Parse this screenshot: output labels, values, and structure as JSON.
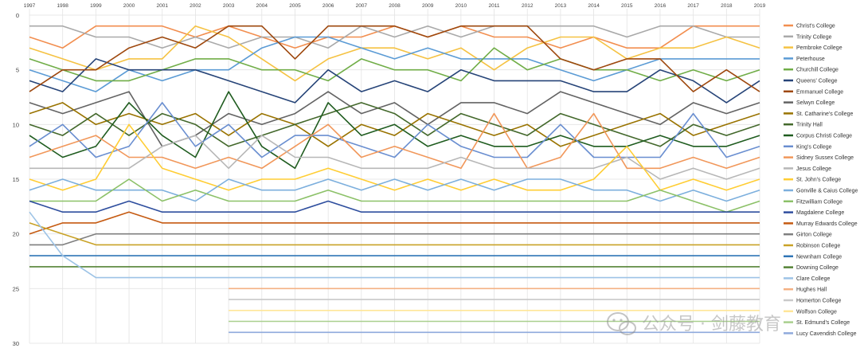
{
  "chart_data": {
    "type": "line",
    "title": "",
    "xlabel": "",
    "ylabel": "",
    "x": [
      "1997",
      "1998",
      "1999",
      "2000",
      "2001",
      "2002",
      "2003",
      "2004",
      "2005",
      "2006",
      "2007",
      "2008",
      "2009",
      "2010",
      "2011",
      "2012",
      "2013",
      "2014",
      "2015",
      "2016",
      "2017",
      "2018",
      "2019"
    ],
    "y_ticks": [
      "0",
      "5",
      "10",
      "15",
      "20",
      "25",
      "30"
    ],
    "ylim": [
      0,
      30
    ],
    "y_inverted": true,
    "x_axis_position": "top",
    "grid": {
      "horizontal": true,
      "vertical": true
    },
    "legend_position": "right",
    "series": [
      {
        "name": "Christ's College",
        "color": "#f28e4f",
        "values": [
          2,
          3,
          1,
          1,
          1,
          2,
          1,
          2,
          3,
          2,
          2,
          1,
          2,
          1,
          2,
          2,
          3,
          2,
          3,
          3,
          1,
          1,
          1
        ]
      },
      {
        "name": "Trinity College",
        "color": "#a9a9a9",
        "values": [
          1,
          1,
          2,
          2,
          3,
          2,
          3,
          2,
          2,
          3,
          1,
          2,
          1,
          2,
          1,
          1,
          1,
          1,
          2,
          1,
          1,
          2,
          2
        ]
      },
      {
        "name": "Pembroke College",
        "color": "#f5c242",
        "values": [
          3,
          4,
          5,
          4,
          4,
          1,
          2,
          4,
          6,
          4,
          3,
          3,
          4,
          3,
          5,
          3,
          2,
          2,
          4,
          3,
          3,
          2,
          3
        ]
      },
      {
        "name": "Peterhouse",
        "color": "#5b9bd5",
        "values": [
          5,
          6,
          7,
          5,
          6,
          5,
          5,
          3,
          2,
          2,
          3,
          4,
          3,
          4,
          4,
          4,
          5,
          6,
          5,
          4,
          4,
          4,
          4
        ]
      },
      {
        "name": "Churchill College",
        "color": "#70ad47",
        "values": [
          4,
          5,
          6,
          6,
          5,
          4,
          4,
          5,
          5,
          6,
          4,
          5,
          5,
          6,
          3,
          5,
          4,
          5,
          5,
          6,
          5,
          6,
          5
        ]
      },
      {
        "name": "Queens' College",
        "color": "#264478",
        "values": [
          6,
          7,
          4,
          5,
          5,
          5,
          6,
          7,
          8,
          5,
          7,
          6,
          7,
          5,
          6,
          6,
          6,
          7,
          7,
          5,
          6,
          8,
          6
        ]
      },
      {
        "name": "Emmanuel College",
        "color": "#9e480e",
        "values": [
          7,
          5,
          5,
          3,
          2,
          3,
          1,
          1,
          4,
          1,
          1,
          1,
          2,
          1,
          1,
          1,
          4,
          5,
          4,
          4,
          7,
          5,
          7
        ]
      },
      {
        "name": "Selwyn College",
        "color": "#636363",
        "values": [
          8,
          9,
          8,
          7,
          12,
          11,
          9,
          10,
          9,
          7,
          9,
          8,
          10,
          8,
          8,
          9,
          7,
          8,
          9,
          10,
          8,
          9,
          8
        ]
      },
      {
        "name": "St. Catharine's College",
        "color": "#997300",
        "values": [
          9,
          8,
          10,
          9,
          10,
          9,
          11,
          9,
          10,
          12,
          10,
          11,
          9,
          10,
          11,
          10,
          12,
          11,
          10,
          9,
          11,
          10,
          9
        ]
      },
      {
        "name": "Trinity Hall",
        "color": "#43682b",
        "values": [
          10,
          11,
          9,
          11,
          9,
          10,
          12,
          11,
          10,
          9,
          8,
          9,
          11,
          9,
          10,
          11,
          9,
          10,
          11,
          12,
          10,
          11,
          10
        ]
      },
      {
        "name": "Corpus Christi College",
        "color": "#1f5c1f",
        "values": [
          11,
          13,
          12,
          8,
          11,
          13,
          7,
          12,
          14,
          8,
          11,
          10,
          12,
          11,
          12,
          12,
          11,
          12,
          12,
          11,
          12,
          12,
          11
        ]
      },
      {
        "name": "King's College",
        "color": "#698ed0",
        "values": [
          12,
          10,
          13,
          12,
          8,
          12,
          10,
          13,
          11,
          11,
          12,
          13,
          10,
          12,
          13,
          13,
          10,
          13,
          13,
          13,
          9,
          13,
          12
        ]
      },
      {
        "name": "Sidney Sussex College",
        "color": "#f1975a",
        "values": [
          13,
          12,
          11,
          13,
          13,
          14,
          13,
          14,
          12,
          10,
          13,
          12,
          13,
          14,
          9,
          14,
          13,
          9,
          14,
          14,
          13,
          14,
          13
        ]
      },
      {
        "name": "Jesus College",
        "color": "#b7b7b7",
        "values": [
          14,
          14,
          14,
          14,
          12,
          11,
          14,
          11,
          13,
          13,
          14,
          14,
          14,
          13,
          14,
          14,
          14,
          14,
          13,
          15,
          14,
          15,
          14
        ]
      },
      {
        "name": "St. John's College",
        "color": "#ffcd33",
        "values": [
          15,
          16,
          15,
          10,
          14,
          15,
          16,
          15,
          15,
          14,
          15,
          16,
          15,
          16,
          15,
          16,
          16,
          15,
          12,
          16,
          15,
          16,
          15
        ]
      },
      {
        "name": "Gonville & Caius College",
        "color": "#7cafdd",
        "values": [
          16,
          15,
          16,
          16,
          16,
          17,
          15,
          16,
          16,
          15,
          16,
          15,
          16,
          15,
          16,
          15,
          15,
          16,
          16,
          17,
          16,
          17,
          16
        ]
      },
      {
        "name": "Fitzwilliam College",
        "color": "#8cc168",
        "values": [
          17,
          17,
          17,
          15,
          17,
          16,
          17,
          17,
          17,
          16,
          17,
          17,
          17,
          17,
          17,
          17,
          17,
          17,
          17,
          16,
          17,
          18,
          17
        ]
      },
      {
        "name": "Magdalene College",
        "color": "#2e4e9e",
        "values": [
          17,
          18,
          18,
          17,
          18,
          18,
          18,
          18,
          18,
          17,
          18,
          18,
          18,
          18,
          18,
          18,
          18,
          18,
          18,
          18,
          18,
          18,
          18
        ]
      },
      {
        "name": "Murray Edwards College",
        "color": "#c55a11",
        "values": [
          20,
          19,
          19,
          18,
          19,
          19,
          19,
          19,
          19,
          19,
          19,
          19,
          19,
          19,
          19,
          19,
          19,
          19,
          19,
          19,
          19,
          19,
          19
        ]
      },
      {
        "name": "Girton College",
        "color": "#7f7f7f",
        "values": [
          21,
          21,
          20,
          20,
          20,
          20,
          20,
          20,
          20,
          20,
          20,
          20,
          20,
          20,
          20,
          20,
          20,
          20,
          20,
          20,
          20,
          20,
          20
        ]
      },
      {
        "name": "Robinson College",
        "color": "#c9a227",
        "values": [
          19,
          20,
          21,
          21,
          21,
          21,
          21,
          21,
          21,
          21,
          21,
          21,
          21,
          21,
          21,
          21,
          21,
          21,
          21,
          21,
          21,
          21,
          21
        ]
      },
      {
        "name": "Newnham College",
        "color": "#2f75b5",
        "values": [
          22,
          22,
          22,
          22,
          22,
          22,
          22,
          22,
          22,
          22,
          22,
          22,
          22,
          22,
          22,
          22,
          22,
          22,
          22,
          22,
          22,
          22,
          22
        ]
      },
      {
        "name": "Downing College",
        "color": "#548235",
        "values": [
          23,
          23,
          23,
          23,
          23,
          23,
          23,
          23,
          23,
          23,
          23,
          23,
          23,
          23,
          23,
          23,
          23,
          23,
          23,
          23,
          23,
          23,
          23
        ]
      },
      {
        "name": "Clare College",
        "color": "#9dc3e6",
        "values": [
          18,
          22,
          24,
          24,
          24,
          24,
          24,
          24,
          24,
          24,
          24,
          24,
          24,
          24,
          24,
          24,
          24,
          24,
          24,
          24,
          24,
          24,
          24
        ]
      },
      {
        "name": "Hughes Hall",
        "color": "#f4b183",
        "values": [
          null,
          null,
          null,
          null,
          null,
          null,
          25,
          25,
          25,
          25,
          25,
          25,
          25,
          25,
          25,
          25,
          25,
          25,
          25,
          25,
          25,
          25,
          25
        ]
      },
      {
        "name": "Homerton College",
        "color": "#c9c9c9",
        "values": [
          null,
          null,
          null,
          null,
          null,
          null,
          26,
          26,
          26,
          26,
          26,
          26,
          26,
          26,
          26,
          26,
          26,
          26,
          26,
          26,
          26,
          26,
          26
        ]
      },
      {
        "name": "Wolfson College",
        "color": "#ffe699",
        "values": [
          null,
          null,
          null,
          null,
          null,
          null,
          27,
          27,
          27,
          27,
          27,
          27,
          27,
          27,
          27,
          27,
          27,
          27,
          27,
          27,
          27,
          27,
          27
        ]
      },
      {
        "name": "St. Edmund's College",
        "color": "#a9d08e",
        "values": [
          null,
          null,
          null,
          null,
          null,
          null,
          28,
          28,
          28,
          28,
          28,
          28,
          28,
          28,
          28,
          28,
          28,
          28,
          28,
          28,
          28,
          28,
          28
        ]
      },
      {
        "name": "Lucy Cavendish College",
        "color": "#8faadc",
        "values": [
          null,
          null,
          null,
          null,
          null,
          null,
          29,
          29,
          29,
          29,
          29,
          29,
          29,
          29,
          29,
          29,
          29,
          29,
          29,
          29,
          29,
          29,
          29
        ]
      }
    ]
  },
  "watermark": {
    "text": "公众号 · 剑藤教育",
    "icon": "wechat-icon"
  }
}
